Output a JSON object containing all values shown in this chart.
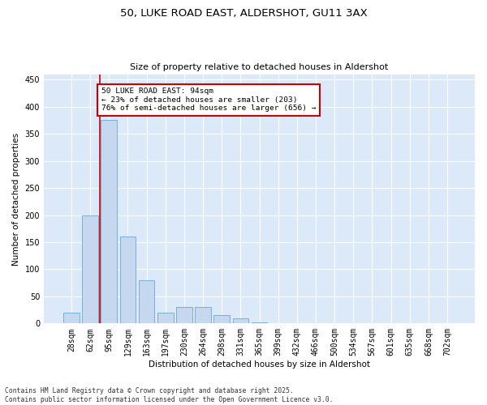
{
  "title_line1": "50, LUKE ROAD EAST, ALDERSHOT, GU11 3AX",
  "title_line2": "Size of property relative to detached houses in Aldershot",
  "xlabel": "Distribution of detached houses by size in Aldershot",
  "ylabel": "Number of detached properties",
  "categories": [
    "28sqm",
    "62sqm",
    "95sqm",
    "129sqm",
    "163sqm",
    "197sqm",
    "230sqm",
    "264sqm",
    "298sqm",
    "331sqm",
    "365sqm",
    "399sqm",
    "432sqm",
    "466sqm",
    "500sqm",
    "534sqm",
    "567sqm",
    "601sqm",
    "635sqm",
    "668sqm",
    "702sqm"
  ],
  "values": [
    20,
    200,
    375,
    160,
    80,
    20,
    30,
    30,
    15,
    10,
    2,
    0,
    1,
    0,
    0,
    0,
    0,
    0,
    0,
    0,
    1
  ],
  "bar_color": "#c5d8f0",
  "bar_edge_color": "#7bafd4",
  "highlight_line_color": "#cc0000",
  "annotation_text": "50 LUKE ROAD EAST: 94sqm\n← 23% of detached houses are smaller (203)\n76% of semi-detached houses are larger (656) →",
  "annotation_box_edge_color": "#cc0000",
  "ylim": [
    0,
    460
  ],
  "yticks": [
    0,
    50,
    100,
    150,
    200,
    250,
    300,
    350,
    400,
    450
  ],
  "bg_color": "#dce9f8",
  "grid_color": "#ffffff",
  "footer_line1": "Contains HM Land Registry data © Crown copyright and database right 2025.",
  "footer_line2": "Contains public sector information licensed under the Open Government Licence v3.0."
}
